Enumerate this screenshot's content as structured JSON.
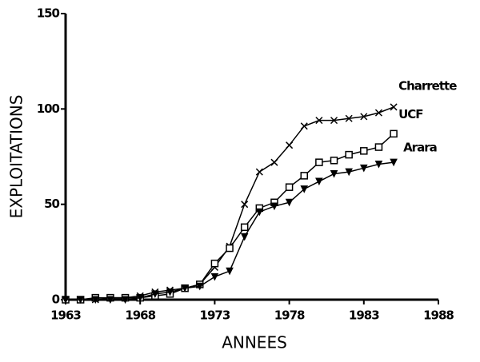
{
  "chart_data": {
    "type": "line",
    "xlabel": "ANNEES",
    "ylabel": "EXPLOITATIONS",
    "x": [
      1963,
      1964,
      1965,
      1966,
      1967,
      1968,
      1969,
      1970,
      1971,
      1972,
      1973,
      1974,
      1975,
      1976,
      1977,
      1978,
      1979,
      1980,
      1981,
      1982,
      1983,
      1984,
      1985
    ],
    "series": [
      {
        "name": "Charrette",
        "color": "#000000",
        "marker": "x",
        "values": [
          0,
          0,
          0,
          1,
          1,
          2,
          4,
          5,
          6,
          8,
          17,
          28,
          50,
          67,
          72,
          81,
          91,
          94,
          94,
          95,
          96,
          98,
          101
        ]
      },
      {
        "name": "UCF",
        "color": "#000000",
        "marker": "square",
        "values": [
          0,
          0,
          1,
          1,
          1,
          1,
          2,
          3,
          6,
          8,
          19,
          27,
          38,
          48,
          51,
          59,
          65,
          72,
          73,
          76,
          78,
          80,
          87
        ]
      },
      {
        "name": "Arara",
        "color": "#000000",
        "marker": "triangle-down",
        "values": [
          0,
          0,
          0,
          0,
          0,
          1,
          3,
          4,
          6,
          7,
          12,
          15,
          33,
          46,
          49,
          51,
          58,
          62,
          66,
          67,
          69,
          71,
          72
        ]
      }
    ],
    "xlim": [
      1963,
      1988
    ],
    "xticks": [
      1963,
      1968,
      1973,
      1978,
      1983,
      1988
    ],
    "ylim": [
      0,
      150
    ],
    "yticks": [
      0,
      50,
      100,
      150
    ]
  }
}
